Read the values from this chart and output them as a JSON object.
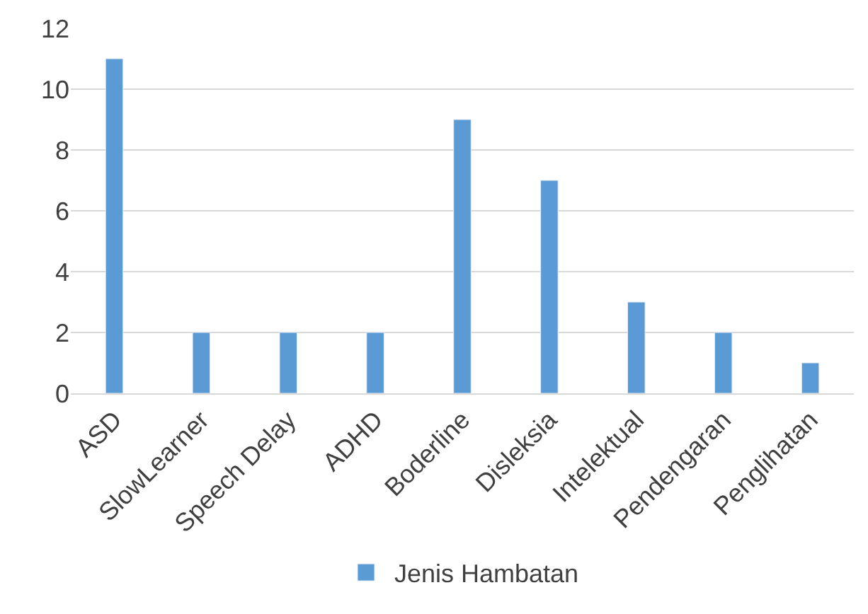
{
  "chart_data": {
    "type": "bar",
    "categories": [
      "ASD",
      "SlowLearner",
      "Speech Delay",
      "ADHD",
      "Boderline",
      "Disleksia",
      "Intelektual",
      "Pendengaran",
      "Penglihatan"
    ],
    "series": [
      {
        "name": "Jenis Hambatan",
        "color": "#5b9bd5",
        "values": [
          11,
          2,
          2,
          2,
          9,
          7,
          3,
          2,
          1
        ]
      }
    ],
    "ylim": [
      0,
      12
    ],
    "yticks": [
      0,
      2,
      4,
      6,
      8,
      10,
      12
    ],
    "grid": "y",
    "legend": "bottom"
  }
}
